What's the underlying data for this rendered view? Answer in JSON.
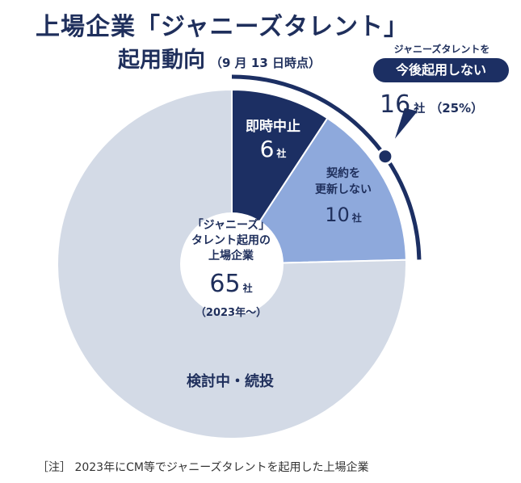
{
  "title": {
    "line1": "上場企業「ジャニーズタレント」",
    "line2": "起用動向",
    "date_note": "（9 月 13 日時点）"
  },
  "chart_data": {
    "type": "pie",
    "style": "donut",
    "total": 65,
    "unit": "社",
    "segments": [
      {
        "label": "即時中止",
        "value": 6,
        "color": "#1c2f63"
      },
      {
        "label": "契約を更新しない",
        "label_lines": [
          "契約を",
          "更新しない"
        ],
        "value": 10,
        "color": "#8ea9dc"
      },
      {
        "label": "検討中・続投",
        "value": 49,
        "color": "#d3dae6"
      }
    ],
    "center": {
      "label_lines": [
        "「ジャニーズ」",
        "タレント起用の",
        "上場企業"
      ],
      "value": "65",
      "unit": "社",
      "period": "（2023年～）"
    },
    "callout": {
      "top_text": "ジャニーズタレントを",
      "pill_text": "今後起用しない",
      "value": "16",
      "unit": "社",
      "percent": "（25%）",
      "accent_color": "#1c2f63"
    }
  },
  "footnote": "［注］ 2023年にCM等でジャニーズタレントを起用した上場企業"
}
